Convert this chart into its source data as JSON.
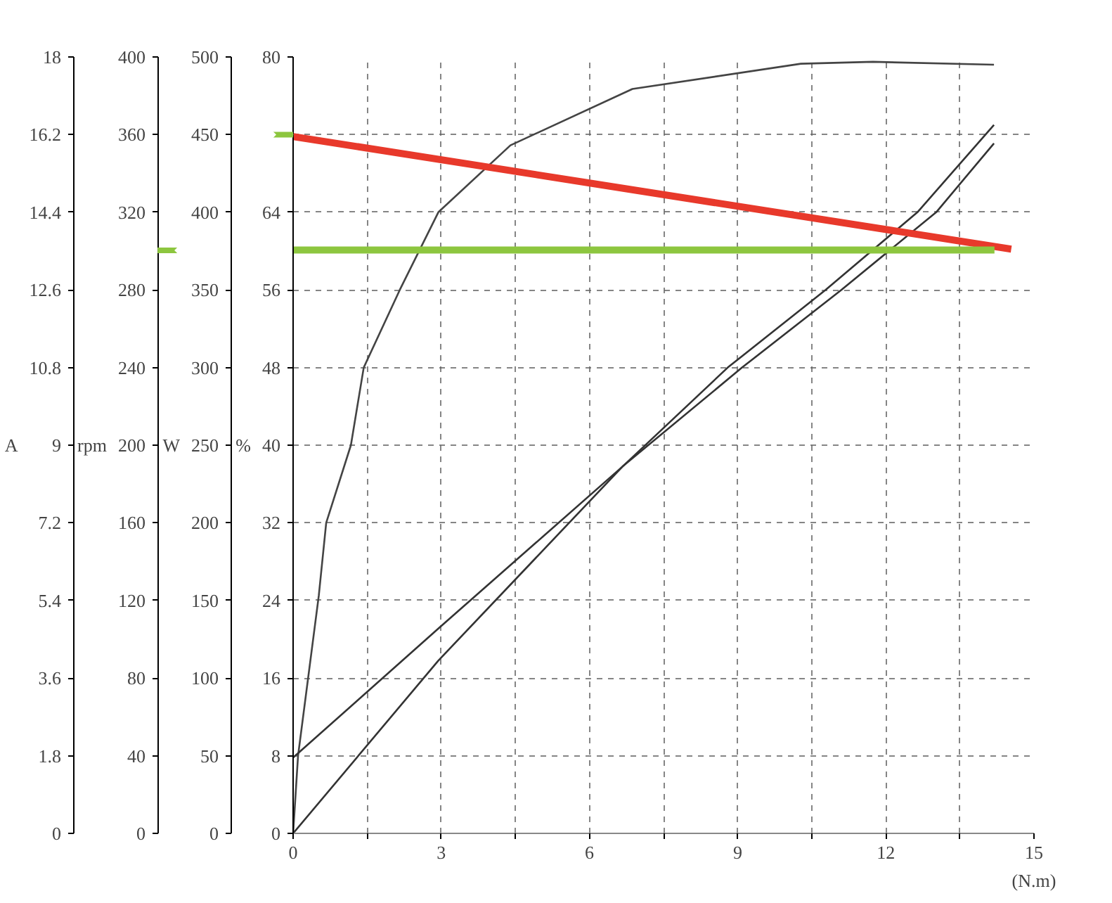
{
  "chart_data": {
    "type": "line",
    "xlabel": "(N.m)",
    "ylabel": "%",
    "y2label": "W",
    "y3label": "rpm",
    "xlim": [
      0,
      15
    ],
    "xticks": [
      0,
      {
        "value": 1.5,
        "label": null
      },
      3,
      {
        "value": 4.5,
        "label": null
      },
      6,
      {
        "value": 7.5,
        "label": null
      },
      9,
      {
        "value": 10.5,
        "label": null
      },
      12,
      {
        "value": 13.5,
        "label": null
      },
      15
    ],
    "ylim": [
      0,
      80
    ],
    "yticks": [
      0,
      8,
      16,
      24,
      32,
      40,
      48,
      56,
      64,
      {
        "value": 72,
        "label": null
      },
      80
    ],
    "y2lim": [
      0,
      500
    ],
    "y2ticks": [
      0,
      50,
      100,
      150,
      200,
      250,
      300,
      350,
      400,
      450,
      500
    ],
    "y3lim": [
      0,
      400
    ],
    "y3ticks": [
      0,
      40,
      80,
      120,
      160,
      200,
      240,
      280,
      320,
      360,
      400
    ],
    "annotations": [
      "A",
      "0",
      "1.8",
      "3.6",
      "5.4",
      "7.2",
      "9",
      "10.8",
      "12.6",
      "14.4",
      "16.2",
      "18"
    ],
    "grid": true,
    "line_style": "solid",
    "series": [
      {
        "color": "#444444",
        "x": [
          0,
          0.1,
          0.52,
          0.67,
          1.17,
          1.43,
          2.16,
          2.94,
          4.4,
          6.87,
          10.28,
          11.74,
          14.19
        ],
        "values": [
          0,
          8,
          24.5,
          32,
          40,
          48,
          56,
          64,
          70.9,
          76.7,
          79.3,
          79.5,
          79.2
        ]
      },
      {
        "color": "#333333",
        "x": [
          0,
          2.94,
          6.67,
          9.09,
          11.1,
          13.02,
          14.19
        ],
        "values": [
          7.8,
          21.1,
          37.8,
          48,
          56,
          64,
          71.1
        ]
      },
      {
        "color": "#333333",
        "x": [
          0,
          2.94,
          6.67,
          8.8,
          10.78,
          12.64,
          14.19
        ],
        "values": [
          0,
          17.8,
          37.8,
          48,
          56,
          64,
          73
        ]
      },
      {
        "color": "#e8392b",
        "x": [
          0,
          14.54
        ],
        "values": [
          71.8,
          60.2
        ]
      },
      {
        "color": "#8dc63f",
        "x": [
          14.2,
          0
        ],
        "values": [
          60.1,
          60.1
        ]
      }
    ]
  }
}
